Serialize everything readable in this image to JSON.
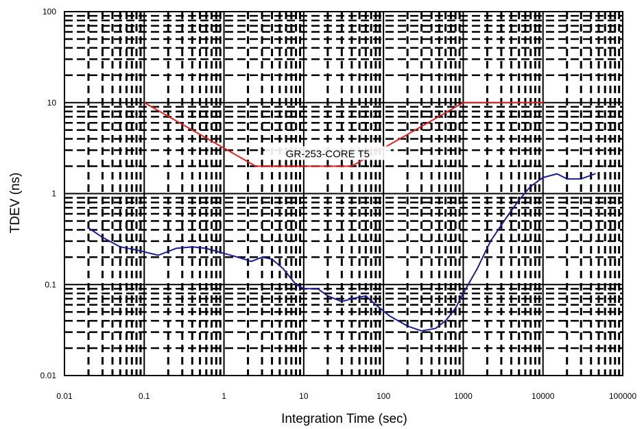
{
  "chart_data": {
    "type": "line",
    "title": "",
    "xlabel": "Integration Time (sec)",
    "ylabel": "TDEV (ns)",
    "x_scale": "log",
    "y_scale": "log",
    "xlim": [
      0.01,
      100000
    ],
    "ylim": [
      0.01,
      100
    ],
    "x_ticks": [
      0.01,
      0.1,
      1,
      10,
      100,
      1000,
      10000,
      100000
    ],
    "x_tick_labels": [
      "0.01",
      "0.1",
      "1",
      "10",
      "100",
      "1000",
      "10000",
      "100000"
    ],
    "y_ticks": [
      0.01,
      0.1,
      1,
      10,
      100
    ],
    "y_tick_labels": [
      "0.01",
      "0.1",
      "1",
      "10",
      "100"
    ],
    "grid": true,
    "legend": "none",
    "annotations": [
      {
        "text": "GR-253-CORE T5",
        "x": 20,
        "y": 2.6
      }
    ],
    "series": [
      {
        "color": "#e82020",
        "x": [
          0.1,
          2.5,
          40,
          1000,
          10000
        ],
        "y": [
          10,
          2,
          2,
          10,
          10
        ]
      },
      {
        "color": "#1a1a9a",
        "x": [
          0.02,
          0.03,
          0.05,
          0.08,
          0.15,
          0.25,
          0.4,
          0.6,
          1,
          1.5,
          2.2,
          3,
          4,
          5.5,
          8,
          10,
          15,
          20,
          30,
          40,
          60,
          80,
          120,
          200,
          300,
          450,
          600,
          800,
          1000,
          1500,
          2200,
          3500,
          5000,
          7000,
          10000,
          15000,
          20000,
          30000,
          45000
        ],
        "y": [
          0.42,
          0.33,
          0.26,
          0.24,
          0.21,
          0.25,
          0.26,
          0.25,
          0.22,
          0.2,
          0.18,
          0.2,
          0.19,
          0.15,
          0.1,
          0.09,
          0.09,
          0.075,
          0.065,
          0.07,
          0.075,
          0.06,
          0.045,
          0.035,
          0.031,
          0.033,
          0.04,
          0.055,
          0.08,
          0.15,
          0.3,
          0.55,
          0.85,
          1.2,
          1.5,
          1.65,
          1.45,
          1.45,
          1.65
        ]
      }
    ]
  }
}
